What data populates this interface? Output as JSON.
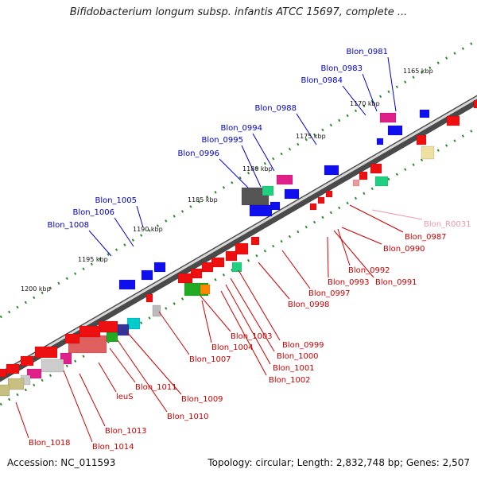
{
  "title": "Bifidobacterium longum subsp. infantis ATCC 15697, complete ...",
  "footer": {
    "accession": "Accession: NC_011593",
    "summary": "Topology: circular; Length: 2,832,748 bp; Genes: 2,507"
  },
  "colors": {
    "backbone": "#8a8a8a",
    "upper_label": "#0000cc",
    "lower_label": "#cc0000",
    "rna_label": "#ee99aa",
    "tick": "#2e8b2e"
  },
  "scale_labels": [
    "1165 kbp",
    "1170 kbp",
    "1175 kbp",
    "1180 kbp",
    "1185 kbp",
    "1190 kbp",
    "1195 kbp",
    "1200 kbp"
  ],
  "upper_genes": [
    "Blon_0981",
    "Blon_0983",
    "Blon_0984",
    "Blon_0988",
    "Blon_0994",
    "Blon_0995",
    "Blon_0996",
    "Blon_1005",
    "Blon_1006",
    "Blon_1008"
  ],
  "lower_genes": [
    "Blon_0987",
    "Blon_0990",
    "Blon_0992",
    "Blon_0993",
    "Blon_0991",
    "Blon_0997",
    "Blon_0998",
    "Blon_0999",
    "Blon_1000",
    "Blon_1001",
    "Blon_1002",
    "Blon_1003",
    "Blon_1004",
    "Blon_1007",
    "Blon_1009",
    "Blon_1010",
    "Blon_1011",
    "leuS",
    "Blon_1013",
    "Blon_1014",
    "Blon_1018"
  ],
  "rna_genes": [
    "Blon_R0031"
  ]
}
